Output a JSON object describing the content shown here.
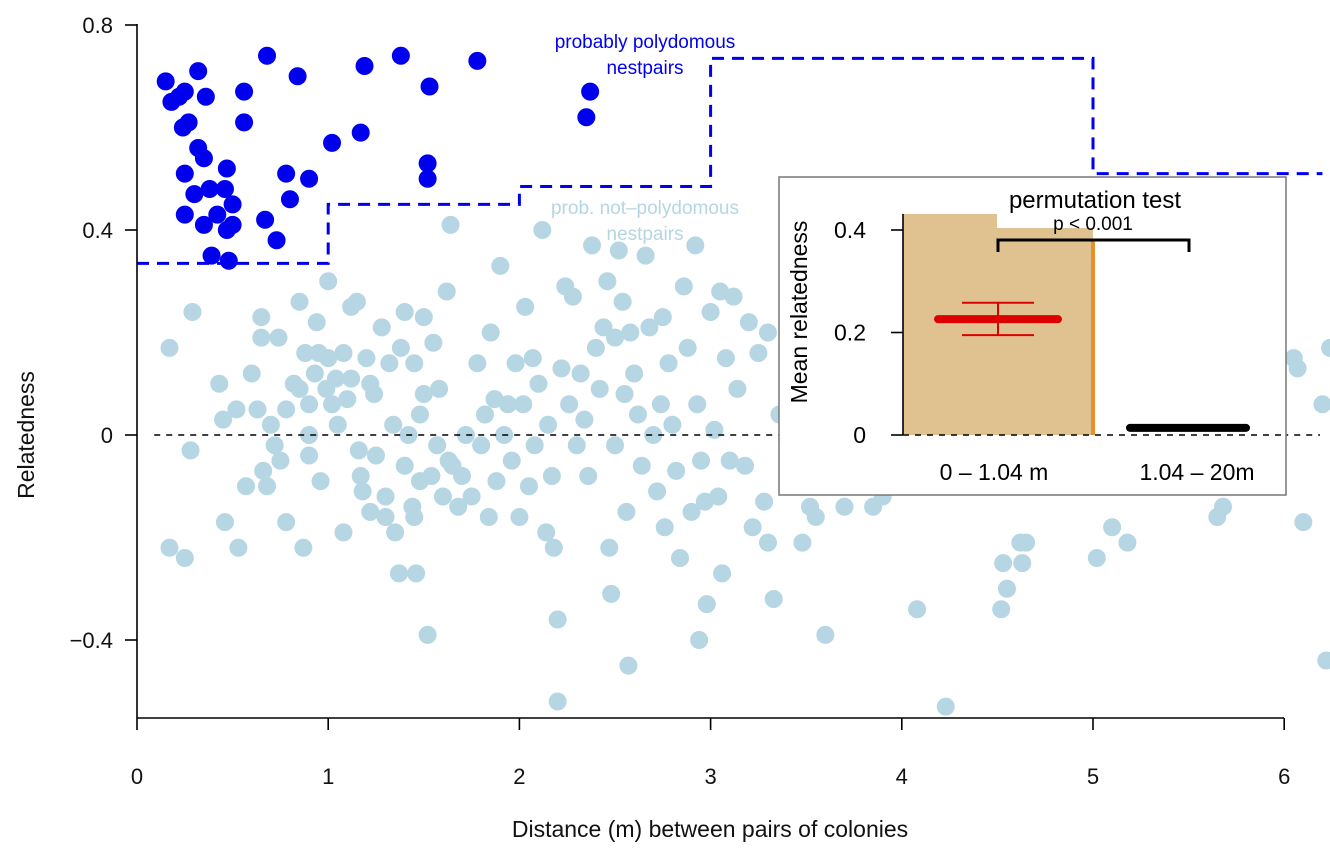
{
  "chart_data": {
    "type": "scatter",
    "xlabel": "Distance (m) between pairs of colonies",
    "ylabel": "Relatedness",
    "xlim": [
      0,
      6.2
    ],
    "ylim": [
      -0.55,
      0.82
    ],
    "xticks": [
      "0",
      "1",
      "2",
      "3",
      "4",
      "5",
      "6"
    ],
    "yticks": [
      "-0.4",
      "0",
      "0.4",
      "0.8"
    ],
    "colors": {
      "polydomous": "#0000ee",
      "not_polydomous": "#b6d6e3",
      "threshold": "#0000ee",
      "bar_fill": "#e0c290",
      "bar_edge": "#e8902a",
      "mean_near": "#dd0000",
      "mean_far": "#000000"
    },
    "annotations": {
      "polydomous_label_line1": "probably polydomous",
      "polydomous_label_line2": "nestpairs",
      "not_polydomous_label_line1": "prob. not–polydomous",
      "not_polydomous_label_line2": "nestpairs"
    },
    "threshold_steps": [
      {
        "x0": 0,
        "x1": 1,
        "y": 0.335
      },
      {
        "x0": 1,
        "x1": 2,
        "y": 0.45
      },
      {
        "x0": 2,
        "x1": 3,
        "y": 0.485
      },
      {
        "x0": 3,
        "x1": 5,
        "y": 0.735
      },
      {
        "x0": 5,
        "x1": 6.2,
        "y": 0.51
      }
    ],
    "zero_line": true,
    "series": [
      {
        "name": "probably polydomous nestpairs",
        "points": [
          [
            0.15,
            0.69
          ],
          [
            0.18,
            0.65
          ],
          [
            0.22,
            0.66
          ],
          [
            0.25,
            0.67
          ],
          [
            0.32,
            0.71
          ],
          [
            0.36,
            0.66
          ],
          [
            0.24,
            0.6
          ],
          [
            0.27,
            0.61
          ],
          [
            0.32,
            0.56
          ],
          [
            0.35,
            0.54
          ],
          [
            0.25,
            0.51
          ],
          [
            0.3,
            0.47
          ],
          [
            0.38,
            0.48
          ],
          [
            0.46,
            0.48
          ],
          [
            0.47,
            0.52
          ],
          [
            0.25,
            0.43
          ],
          [
            0.42,
            0.43
          ],
          [
            0.5,
            0.45
          ],
          [
            0.35,
            0.41
          ],
          [
            0.47,
            0.4
          ],
          [
            0.5,
            0.41
          ],
          [
            0.39,
            0.35
          ],
          [
            0.48,
            0.34
          ],
          [
            0.56,
            0.67
          ],
          [
            0.56,
            0.61
          ],
          [
            0.68,
            0.74
          ],
          [
            0.78,
            0.51
          ],
          [
            0.8,
            0.46
          ],
          [
            0.84,
            0.7
          ],
          [
            0.9,
            0.5
          ],
          [
            0.67,
            0.42
          ],
          [
            0.73,
            0.38
          ],
          [
            1.02,
            0.57
          ],
          [
            1.17,
            0.59
          ],
          [
            1.19,
            0.72
          ],
          [
            1.38,
            0.74
          ],
          [
            1.52,
            0.53
          ],
          [
            1.52,
            0.5
          ],
          [
            1.53,
            0.68
          ],
          [
            1.78,
            0.73
          ],
          [
            2.37,
            0.67
          ],
          [
            2.35,
            0.62
          ]
        ]
      },
      {
        "name": "prob. not–polydomous nestpairs",
        "points": [
          [
            0.17,
            0.17
          ],
          [
            0.17,
            -0.22
          ],
          [
            0.25,
            -0.24
          ],
          [
            0.28,
            -0.03
          ],
          [
            0.29,
            0.24
          ],
          [
            0.43,
            0.1
          ],
          [
            0.45,
            0.03
          ],
          [
            0.46,
            -0.17
          ],
          [
            0.52,
            0.05
          ],
          [
            0.53,
            -0.22
          ],
          [
            0.57,
            -0.1
          ],
          [
            0.6,
            0.12
          ],
          [
            0.63,
            0.05
          ],
          [
            0.65,
            0.23
          ],
          [
            0.65,
            0.19
          ],
          [
            0.66,
            -0.07
          ],
          [
            0.68,
            -0.1
          ],
          [
            0.7,
            0.02
          ],
          [
            0.72,
            -0.02
          ],
          [
            0.74,
            0.19
          ],
          [
            0.75,
            -0.05
          ],
          [
            0.78,
            0.05
          ],
          [
            0.78,
            -0.17
          ],
          [
            0.82,
            0.1
          ],
          [
            0.85,
            0.26
          ],
          [
            0.85,
            0.09
          ],
          [
            0.87,
            -0.22
          ],
          [
            0.88,
            0.16
          ],
          [
            0.9,
            0.06
          ],
          [
            0.9,
            0.0
          ],
          [
            0.9,
            -0.04
          ],
          [
            0.93,
            0.12
          ],
          [
            0.94,
            0.22
          ],
          [
            0.95,
            0.16
          ],
          [
            0.96,
            -0.09
          ],
          [
            0.99,
            0.09
          ],
          [
            1.0,
            0.3
          ],
          [
            1.0,
            0.15
          ],
          [
            1.02,
            0.06
          ],
          [
            1.04,
            0.11
          ],
          [
            1.05,
            0.02
          ],
          [
            1.08,
            0.16
          ],
          [
            1.08,
            -0.19
          ],
          [
            1.1,
            0.07
          ],
          [
            1.12,
            0.25
          ],
          [
            1.12,
            0.11
          ],
          [
            1.15,
            0.26
          ],
          [
            1.16,
            -0.03
          ],
          [
            1.17,
            -0.08
          ],
          [
            1.18,
            -0.11
          ],
          [
            1.2,
            0.15
          ],
          [
            1.22,
            0.1
          ],
          [
            1.22,
            -0.15
          ],
          [
            1.24,
            0.08
          ],
          [
            1.25,
            -0.04
          ],
          [
            1.28,
            0.21
          ],
          [
            1.3,
            -0.12
          ],
          [
            1.3,
            -0.16
          ],
          [
            1.32,
            0.14
          ],
          [
            1.34,
            0.02
          ],
          [
            1.35,
            -0.19
          ],
          [
            1.37,
            -0.27
          ],
          [
            1.38,
            0.17
          ],
          [
            1.4,
            0.24
          ],
          [
            1.4,
            -0.06
          ],
          [
            1.42,
            0.0
          ],
          [
            1.44,
            -0.14
          ],
          [
            1.45,
            0.14
          ],
          [
            1.45,
            -0.16
          ],
          [
            1.46,
            -0.27
          ],
          [
            1.48,
            0.04
          ],
          [
            1.48,
            -0.09
          ],
          [
            1.5,
            0.23
          ],
          [
            1.5,
            0.08
          ],
          [
            1.52,
            -0.39
          ],
          [
            1.54,
            -0.08
          ],
          [
            1.55,
            0.18
          ],
          [
            1.57,
            -0.02
          ],
          [
            1.58,
            0.09
          ],
          [
            1.6,
            -0.12
          ],
          [
            1.62,
            0.28
          ],
          [
            1.63,
            -0.05
          ],
          [
            1.64,
            0.41
          ],
          [
            1.65,
            -0.06
          ],
          [
            1.68,
            -0.14
          ],
          [
            1.7,
            -0.08
          ],
          [
            1.72,
            0.0
          ],
          [
            1.75,
            -0.12
          ],
          [
            1.78,
            0.14
          ],
          [
            1.8,
            -0.02
          ],
          [
            1.82,
            0.04
          ],
          [
            1.84,
            -0.16
          ],
          [
            1.85,
            0.2
          ],
          [
            1.87,
            0.07
          ],
          [
            1.88,
            -0.09
          ],
          [
            1.9,
            0.33
          ],
          [
            1.92,
            0.0
          ],
          [
            1.94,
            0.06
          ],
          [
            1.96,
            -0.05
          ],
          [
            1.98,
            0.14
          ],
          [
            2.0,
            -0.16
          ],
          [
            2.02,
            0.06
          ],
          [
            2.03,
            0.25
          ],
          [
            2.05,
            -0.1
          ],
          [
            2.07,
            0.15
          ],
          [
            2.08,
            -0.02
          ],
          [
            2.1,
            0.1
          ],
          [
            2.12,
            0.4
          ],
          [
            2.14,
            -0.19
          ],
          [
            2.15,
            0.02
          ],
          [
            2.17,
            -0.08
          ],
          [
            2.18,
            -0.22
          ],
          [
            2.2,
            -0.36
          ],
          [
            2.2,
            -0.52
          ],
          [
            2.22,
            0.13
          ],
          [
            2.24,
            0.29
          ],
          [
            2.26,
            0.06
          ],
          [
            2.28,
            0.27
          ],
          [
            2.3,
            -0.02
          ],
          [
            2.32,
            0.12
          ],
          [
            2.34,
            0.03
          ],
          [
            2.36,
            -0.08
          ],
          [
            2.38,
            0.37
          ],
          [
            2.4,
            0.17
          ],
          [
            2.42,
            0.09
          ],
          [
            2.44,
            0.21
          ],
          [
            2.46,
            0.3
          ],
          [
            2.47,
            -0.22
          ],
          [
            2.48,
            -0.31
          ],
          [
            2.5,
            0.19
          ],
          [
            2.5,
            -0.02
          ],
          [
            2.52,
            0.36
          ],
          [
            2.54,
            0.26
          ],
          [
            2.55,
            0.08
          ],
          [
            2.56,
            -0.15
          ],
          [
            2.57,
            -0.45
          ],
          [
            2.58,
            0.2
          ],
          [
            2.6,
            0.12
          ],
          [
            2.62,
            0.04
          ],
          [
            2.64,
            -0.06
          ],
          [
            2.66,
            0.35
          ],
          [
            2.68,
            0.21
          ],
          [
            2.7,
            0.0
          ],
          [
            2.72,
            -0.11
          ],
          [
            2.74,
            0.06
          ],
          [
            2.75,
            0.23
          ],
          [
            2.76,
            -0.18
          ],
          [
            2.78,
            0.14
          ],
          [
            2.8,
            0.02
          ],
          [
            2.82,
            -0.07
          ],
          [
            2.84,
            -0.24
          ],
          [
            2.86,
            0.29
          ],
          [
            2.88,
            0.17
          ],
          [
            2.9,
            -0.15
          ],
          [
            2.92,
            0.37
          ],
          [
            2.93,
            0.06
          ],
          [
            2.94,
            -0.4
          ],
          [
            2.95,
            -0.05
          ],
          [
            2.97,
            -0.13
          ],
          [
            2.98,
            -0.33
          ],
          [
            3.0,
            0.24
          ],
          [
            3.02,
            0.01
          ],
          [
            3.04,
            -0.12
          ],
          [
            3.05,
            0.28
          ],
          [
            3.06,
            -0.27
          ],
          [
            3.08,
            0.15
          ],
          [
            3.1,
            -0.05
          ],
          [
            3.12,
            0.27
          ],
          [
            3.14,
            0.09
          ],
          [
            3.18,
            -0.06
          ],
          [
            3.2,
            0.22
          ],
          [
            3.22,
            -0.18
          ],
          [
            3.25,
            0.16
          ],
          [
            3.28,
            -0.13
          ],
          [
            3.3,
            0.2
          ],
          [
            3.3,
            -0.21
          ],
          [
            3.33,
            -0.32
          ],
          [
            3.36,
            0.04
          ],
          [
            3.4,
            -0.01
          ],
          [
            3.45,
            -0.06
          ],
          [
            3.48,
            -0.21
          ],
          [
            3.52,
            -0.14
          ],
          [
            3.55,
            -0.16
          ],
          [
            3.6,
            -0.39
          ],
          [
            3.65,
            -0.09
          ],
          [
            3.7,
            -0.14
          ],
          [
            3.78,
            -0.08
          ],
          [
            3.85,
            -0.14
          ],
          [
            3.9,
            -0.12
          ],
          [
            4.08,
            -0.34
          ],
          [
            4.23,
            -0.53
          ],
          [
            4.52,
            -0.34
          ],
          [
            4.53,
            -0.25
          ],
          [
            4.55,
            -0.3
          ],
          [
            4.62,
            -0.21
          ],
          [
            4.63,
            -0.25
          ],
          [
            4.65,
            -0.21
          ],
          [
            5.02,
            -0.24
          ],
          [
            5.1,
            -0.18
          ],
          [
            5.18,
            -0.21
          ],
          [
            5.65,
            -0.16
          ],
          [
            5.68,
            -0.14
          ],
          [
            6.05,
            0.15
          ],
          [
            6.07,
            0.13
          ],
          [
            6.1,
            -0.17
          ],
          [
            6.2,
            0.06
          ],
          [
            6.22,
            -0.44
          ],
          [
            6.24,
            0.17
          ]
        ]
      }
    ],
    "inset": {
      "type": "bar",
      "title": "permutation test",
      "ylabel": "Mean relatedness",
      "ylim": [
        0,
        0.43
      ],
      "yticks": [
        "0",
        "0.2",
        "0.4"
      ],
      "categories": [
        "0 –  1.04 m",
        "1.04 – 20m"
      ],
      "values": [
        0.226,
        0.014
      ],
      "ci_near": [
        0.195,
        0.258
      ],
      "significance": "p  < 0.001"
    }
  }
}
